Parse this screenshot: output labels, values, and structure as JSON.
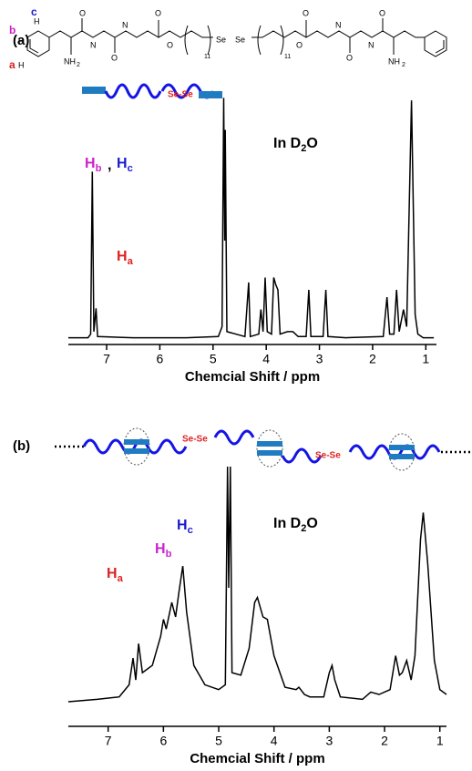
{
  "structure": {
    "site_labels": [
      {
        "text": "a",
        "color": "#e02020"
      },
      {
        "text": "b",
        "color": "#cc22cc"
      },
      {
        "text": "c",
        "color": "#1a1ad0"
      }
    ],
    "atoms": [
      "H",
      "H",
      "H",
      "NH",
      "2",
      "O",
      "N",
      "O",
      "N",
      "O",
      "O",
      "11",
      "Se",
      "Se",
      "11",
      "O",
      "O",
      "N",
      "O",
      "N",
      "O",
      "NH",
      "2"
    ]
  },
  "chart_data": [
    {
      "type": "line",
      "panel_label": "(a)",
      "x_label": "Chemcial Shift / ppm",
      "cartoon_label": "Se-Se",
      "solvent_label": {
        "text": "In D",
        "sub": "2",
        "tail": "O"
      },
      "peak_labels": [
        {
          "text": "H",
          "sub": "b",
          "color": "#cc22cc"
        },
        {
          "text": "H",
          "sub": "c",
          "color": "#1a1ad0"
        },
        {
          "text": "H",
          "sub": "a",
          "color": "#e02020"
        }
      ],
      "separator": ",",
      "xlim": [
        7.72,
        0.8
      ],
      "xticks": [
        7,
        6,
        5,
        4,
        3,
        2,
        1
      ],
      "ylim": [
        0,
        100
      ],
      "color": "#000000",
      "x": [
        7.72,
        7.35,
        7.3,
        7.27,
        7.24,
        7.2,
        7.17,
        6.5,
        5.5,
        4.9,
        4.83,
        4.8,
        4.78,
        4.77,
        4.74,
        4.4,
        4.33,
        4.3,
        4.14,
        4.1,
        4.06,
        4.02,
        3.98,
        3.9,
        3.86,
        3.82,
        3.78,
        3.74,
        3.6,
        3.5,
        3.4,
        3.25,
        3.2,
        3.16,
        2.93,
        2.88,
        2.84,
        2.5,
        1.8,
        1.73,
        1.68,
        1.6,
        1.55,
        1.5,
        1.42,
        1.36,
        1.27,
        1.2,
        1.15,
        1.05,
        0.85
      ],
      "values": [
        0.5,
        0.5,
        2,
        68,
        3,
        12.5,
        1,
        0.5,
        0.5,
        1,
        5,
        98,
        40,
        85,
        3,
        1,
        23,
        1,
        2,
        12,
        3,
        25,
        3,
        2,
        25,
        22,
        20,
        2,
        3,
        3,
        1,
        1,
        20,
        1,
        1,
        20,
        1,
        0.5,
        1,
        17,
        2,
        2,
        20,
        3,
        12,
        5,
        97,
        10,
        2,
        0.5,
        0.5
      ]
    },
    {
      "type": "line",
      "panel_label": "(b)",
      "x_label": "Chemcial Shift / ppm",
      "cartoon_label": "Se-Se",
      "solvent_label": {
        "text": "In D",
        "sub": "2",
        "tail": "O"
      },
      "peak_labels": [
        {
          "text": "H",
          "sub": "a",
          "color": "#e02020"
        },
        {
          "text": "H",
          "sub": "b",
          "color": "#cc22cc"
        },
        {
          "text": "H",
          "sub": "c",
          "color": "#1a1ad0"
        }
      ],
      "xlim": [
        7.72,
        0.88
      ],
      "xticks": [
        7,
        6,
        5,
        4,
        3,
        2,
        1
      ],
      "ylim": [
        0,
        100
      ],
      "color": "#000000",
      "x": [
        7.72,
        7.2,
        6.8,
        6.62,
        6.55,
        6.5,
        6.45,
        6.38,
        6.2,
        6.05,
        6.0,
        5.95,
        5.85,
        5.78,
        5.72,
        5.65,
        5.58,
        5.45,
        5.25,
        5.0,
        4.88,
        4.84,
        4.82,
        4.79,
        4.76,
        4.6,
        4.45,
        4.35,
        4.3,
        4.2,
        4.12,
        4.0,
        3.8,
        3.6,
        3.55,
        3.45,
        3.35,
        3.1,
        3.0,
        2.95,
        2.9,
        2.8,
        2.4,
        2.25,
        2.1,
        1.9,
        1.8,
        1.73,
        1.68,
        1.6,
        1.52,
        1.45,
        1.35,
        1.3,
        1.22,
        1.1,
        1.0,
        0.88
      ],
      "values": [
        3,
        4,
        5,
        10,
        21,
        12,
        27,
        15,
        18,
        30,
        37,
        33,
        44,
        38,
        48,
        59,
        40,
        18,
        10,
        8,
        10,
        100,
        50,
        100,
        15,
        14,
        25,
        44,
        46,
        38,
        37,
        22,
        9,
        8,
        9,
        6,
        5,
        5,
        15,
        18,
        12,
        5,
        4,
        7,
        6,
        8,
        22,
        14,
        15,
        20,
        12,
        22,
        70,
        81,
        60,
        20,
        8,
        6
      ]
    }
  ]
}
